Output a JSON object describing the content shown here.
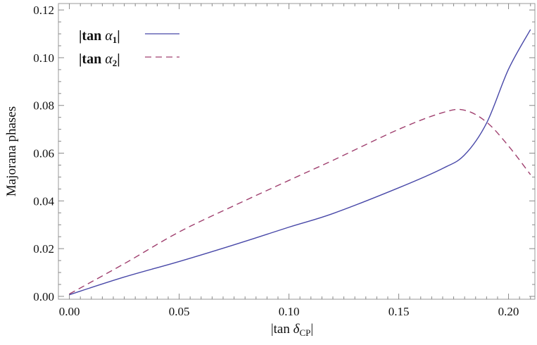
{
  "chart_data": {
    "type": "line",
    "title": "",
    "xlabel": "|tan δ_CP|",
    "xlabel_main": "|tan ",
    "xlabel_symbol": "δ",
    "xlabel_sub": "CP",
    "ylabel": "Majorana  phases",
    "xlim": [
      -0.005,
      0.212
    ],
    "ylim": [
      -0.0012,
      0.1227
    ],
    "x_ticks": [
      "0.00",
      "0.05",
      "0.10",
      "0.15",
      "0.20"
    ],
    "y_ticks": [
      "0.00",
      "0.02",
      "0.04",
      "0.06",
      "0.08",
      "0.10",
      "0.12"
    ],
    "grid": false,
    "legend_position": "top-left",
    "series": [
      {
        "name": "|tan α1|",
        "name_parts": {
          "pre": "|tan ",
          "sym": "α",
          "sub": "1",
          "post": "|"
        },
        "style": "solid",
        "color": "#4848a8",
        "x": [
          0.0,
          0.025,
          0.05,
          0.075,
          0.1,
          0.12,
          0.15,
          0.17,
          0.18,
          0.19,
          0.2,
          0.21
        ],
        "y": [
          0.0007,
          0.0081,
          0.0146,
          0.0216,
          0.029,
          0.0347,
          0.0455,
          0.0536,
          0.0593,
          0.0726,
          0.0952,
          0.1118
        ]
      },
      {
        "name": "|tan α2|",
        "name_parts": {
          "pre": "|tan ",
          "sym": "α",
          "sub": "2",
          "post": "|"
        },
        "style": "dashed",
        "color": "#a0406f",
        "x": [
          0.0,
          0.025,
          0.05,
          0.075,
          0.1,
          0.12,
          0.15,
          0.17,
          0.18,
          0.19,
          0.2,
          0.21
        ],
        "y": [
          0.001,
          0.0137,
          0.027,
          0.038,
          0.0486,
          0.057,
          0.07,
          0.077,
          0.078,
          0.073,
          0.063,
          0.051
        ]
      }
    ]
  }
}
